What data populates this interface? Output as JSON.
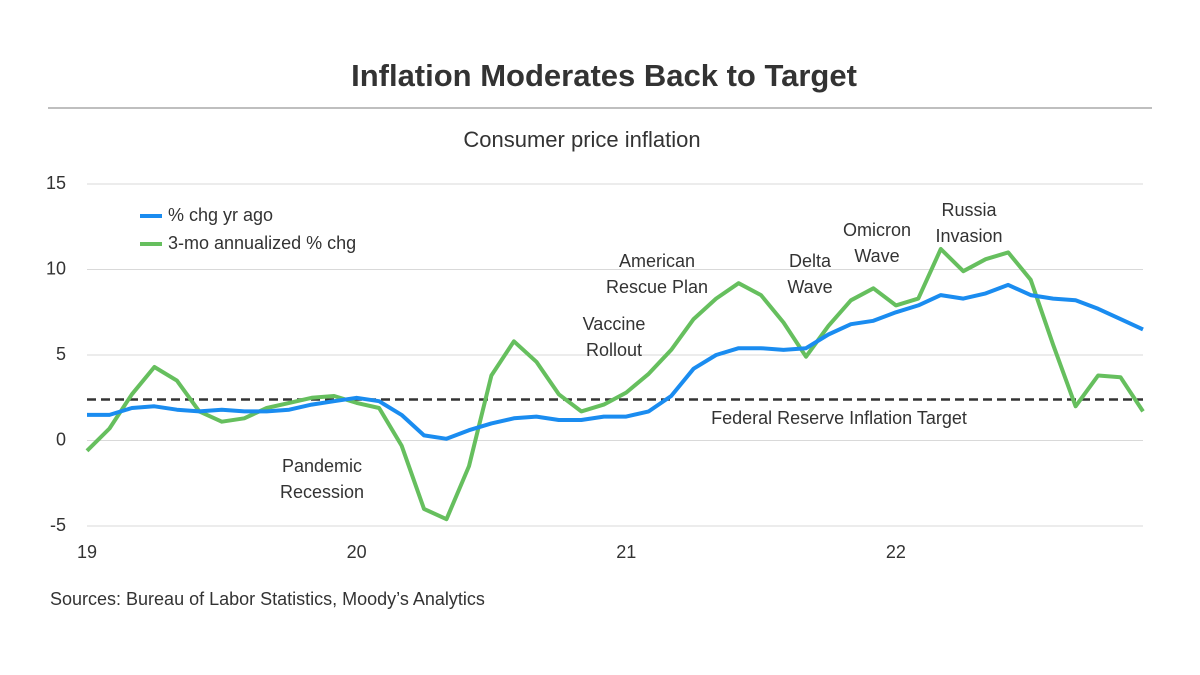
{
  "chart_data": {
    "type": "line",
    "title": "Inflation Moderates Back to Target",
    "subtitle": "Consumer price inflation",
    "source": "Sources: Bureau of Labor Statistics, Moody’s Analytics",
    "categories": [
      "19",
      null,
      null,
      null,
      null,
      null,
      null,
      null,
      null,
      null,
      null,
      null,
      "20",
      null,
      null,
      null,
      null,
      null,
      null,
      null,
      null,
      null,
      null,
      null,
      "21",
      null,
      null,
      null,
      null,
      null,
      null,
      null,
      null,
      null,
      null,
      null,
      "22",
      null,
      null,
      null,
      null,
      null,
      null,
      null,
      null,
      null,
      null,
      null
    ],
    "series": [
      {
        "name": "% chg yr ago",
        "color": "#1a8cf0",
        "values": [
          1.5,
          1.5,
          1.9,
          2.0,
          1.8,
          1.7,
          1.8,
          1.7,
          1.7,
          1.8,
          2.1,
          2.3,
          2.5,
          2.3,
          1.5,
          0.3,
          0.1,
          0.6,
          1.0,
          1.3,
          1.4,
          1.2,
          1.2,
          1.4,
          1.4,
          1.7,
          2.6,
          4.2,
          5.0,
          5.4,
          5.4,
          5.3,
          5.4,
          6.2,
          6.8,
          7.0,
          7.5,
          7.9,
          8.5,
          8.3,
          8.6,
          9.1,
          8.5,
          8.3,
          8.2,
          7.7,
          7.1,
          6.5
        ]
      },
      {
        "name": "3-mo annualized % chg",
        "color": "#66bf5e",
        "values": [
          -0.6,
          0.7,
          2.7,
          4.3,
          3.5,
          1.7,
          1.1,
          1.3,
          1.9,
          2.2,
          2.5,
          2.6,
          2.2,
          1.9,
          -0.3,
          -4.0,
          -4.6,
          -1.5,
          3.8,
          5.8,
          4.6,
          2.7,
          1.7,
          2.1,
          2.8,
          3.9,
          5.3,
          7.1,
          8.3,
          9.2,
          8.5,
          6.9,
          4.9,
          6.7,
          8.2,
          8.9,
          7.9,
          8.3,
          11.2,
          9.9,
          10.6,
          11.0,
          9.4,
          5.6,
          2.0,
          3.8,
          3.7,
          1.7
        ]
      }
    ],
    "reference_line": {
      "value": 2.4,
      "label": "Federal Reserve Inflation Target",
      "color": "#333333"
    },
    "annotations": [
      {
        "lines": [
          "Pandemic",
          "Recession"
        ]
      },
      {
        "lines": [
          "Vaccine",
          "Rollout"
        ]
      },
      {
        "lines": [
          "American",
          "Rescue Plan"
        ]
      },
      {
        "lines": [
          "Delta",
          "Wave"
        ]
      },
      {
        "lines": [
          "Omicron",
          "Wave"
        ]
      },
      {
        "lines": [
          "Russia",
          "Invasion"
        ]
      }
    ],
    "ylim": [
      -5,
      15
    ],
    "yticks": [
      -5,
      0,
      5,
      10,
      15
    ],
    "grid": true,
    "legend": "upper left"
  }
}
